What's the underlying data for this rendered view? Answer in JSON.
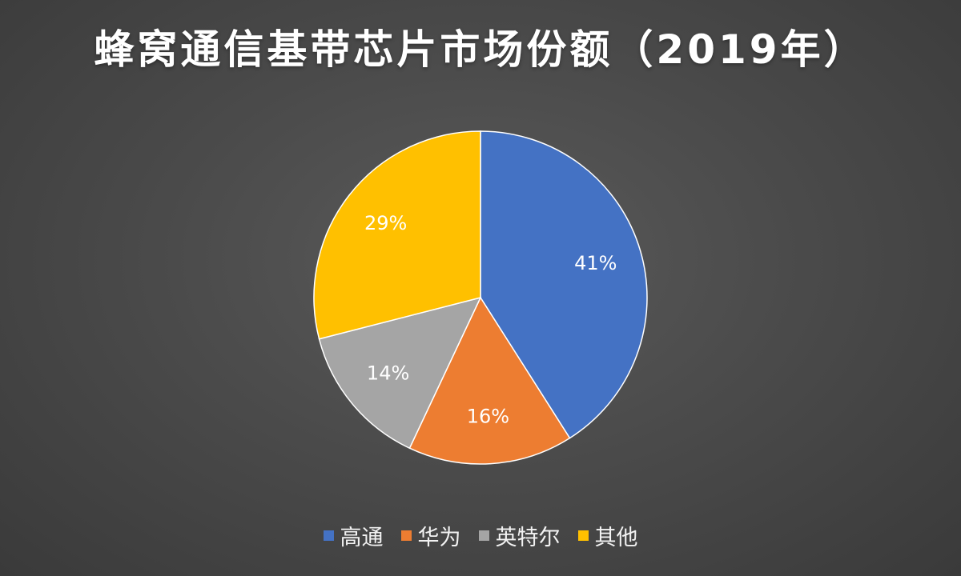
{
  "chart_data": {
    "type": "pie",
    "title": "蜂窝通信基带芯片市场份额（2019年）",
    "categories": [
      "高通",
      "华为",
      "英特尔",
      "其他"
    ],
    "values": [
      41,
      16,
      14,
      29
    ],
    "labels": [
      "41%",
      "16%",
      "14%",
      "29%"
    ],
    "colors": [
      "#4472C4",
      "#ED7D31",
      "#A5A5A5",
      "#FFC000"
    ],
    "legend_position": "bottom"
  }
}
